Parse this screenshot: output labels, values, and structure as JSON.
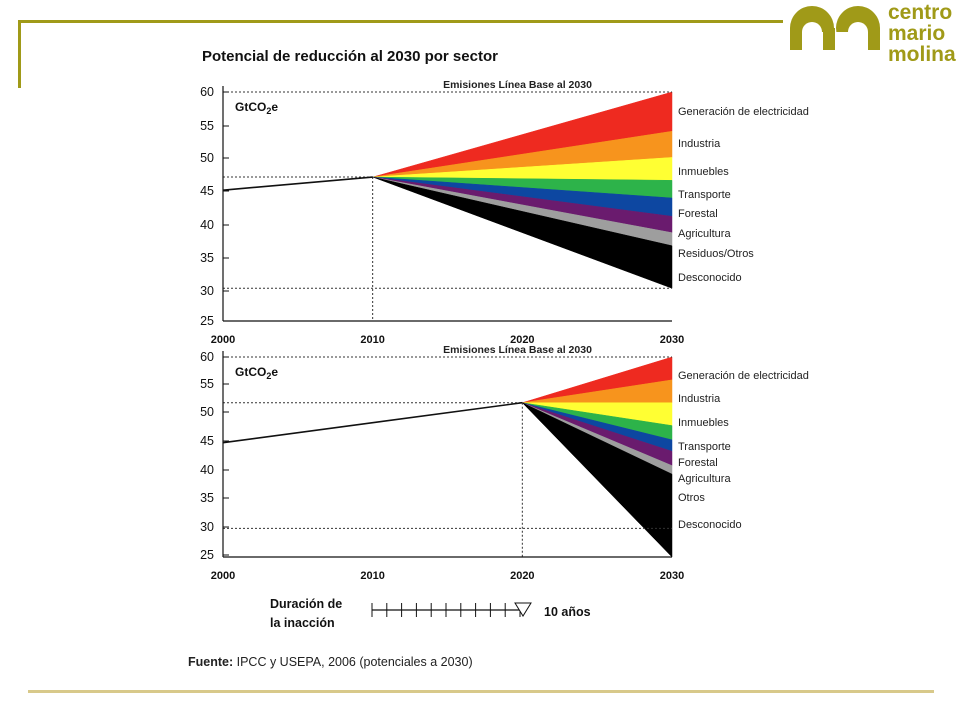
{
  "slide": {
    "title": "Potencial de reducción al 2030 por sector",
    "source_prefix": "Fuente:",
    "source_text": " IPCC y USEPA, 2006 (potenciales a 2030)"
  },
  "logo": {
    "line1": "centro",
    "line2": "mario",
    "line3": "molina",
    "color": "#a09a18"
  },
  "inaction": {
    "label_line1": "Duración de",
    "label_line2": "la inacción",
    "value": "10 años"
  },
  "chart_data": [
    {
      "type": "area",
      "unit_label": "GtCO2e",
      "baseline_label": "Emisiones Línea Base al 2030",
      "xlim": [
        2000,
        2030
      ],
      "ylim": [
        25,
        60
      ],
      "x_ticks": [
        2000,
        2010,
        2020,
        2030
      ],
      "y_ticks": [
        60,
        55,
        50,
        45,
        40,
        35,
        30,
        25
      ],
      "history": {
        "x": [
          2000,
          2010
        ],
        "y": [
          45,
          47
        ]
      },
      "action_year": 2010,
      "action_level": 47,
      "baseline_2030": 60,
      "floor_2030": 30,
      "sectors": [
        {
          "name": "Generación de electricidad",
          "color": "#ee2a20",
          "top_2030": 60,
          "bottom_2030": 54
        },
        {
          "name": "Industria",
          "color": "#f7941d",
          "top_2030": 54,
          "bottom_2030": 50
        },
        {
          "name": "Inmuebles",
          "color": "#ffff33",
          "top_2030": 50,
          "bottom_2030": 46.5
        },
        {
          "name": "Transporte",
          "color": "#2db34a",
          "top_2030": 46.5,
          "bottom_2030": 43.8
        },
        {
          "name": "Forestal",
          "color": "#0d47a1",
          "top_2030": 43.8,
          "bottom_2030": 41
        },
        {
          "name": "Agricultura",
          "color": "#6a1b6e",
          "top_2030": 41,
          "bottom_2030": 38.5
        },
        {
          "name": "Residuos/Otros",
          "color": "#9e9e9e",
          "top_2030": 38.5,
          "bottom_2030": 36.5
        },
        {
          "name": "Desconocido",
          "color": "#000000",
          "top_2030": 36.5,
          "bottom_2030": 30
        }
      ]
    },
    {
      "type": "area",
      "unit_label": "GtCO2e",
      "baseline_label": "Emisiones Línea Base al 2030",
      "xlim": [
        2000,
        2030
      ],
      "ylim": [
        25,
        60
      ],
      "x_ticks": [
        2000,
        2010,
        2020,
        2030
      ],
      "y_ticks": [
        60,
        55,
        50,
        45,
        40,
        35,
        30,
        25
      ],
      "history": {
        "x": [
          2000,
          2020
        ],
        "y": [
          45,
          52
        ]
      },
      "action_year": 2020,
      "action_level": 52,
      "baseline_2030": 60,
      "floor_2030": 25,
      "sectors": [
        {
          "name": "Generación de electricidad",
          "color": "#ee2a20",
          "top_2030": 60,
          "bottom_2030": 56
        },
        {
          "name": "Industria",
          "color": "#f7941d",
          "top_2030": 56,
          "bottom_2030": 52
        },
        {
          "name": "Inmuebles",
          "color": "#ffff33",
          "top_2030": 52,
          "bottom_2030": 48
        },
        {
          "name": "Transporte",
          "color": "#2db34a",
          "top_2030": 48,
          "bottom_2030": 45.5
        },
        {
          "name": "Forestal",
          "color": "#0d47a1",
          "top_2030": 45.5,
          "bottom_2030": 43.5
        },
        {
          "name": "Agricultura",
          "color": "#6a1b6e",
          "top_2030": 43.5,
          "bottom_2030": 41
        },
        {
          "name": "Otros",
          "color": "#9e9e9e",
          "top_2030": 41,
          "bottom_2030": 39.5
        },
        {
          "name": "Desconocido",
          "color": "#000000",
          "top_2030": 39.5,
          "bottom_2030": 25
        }
      ]
    }
  ]
}
